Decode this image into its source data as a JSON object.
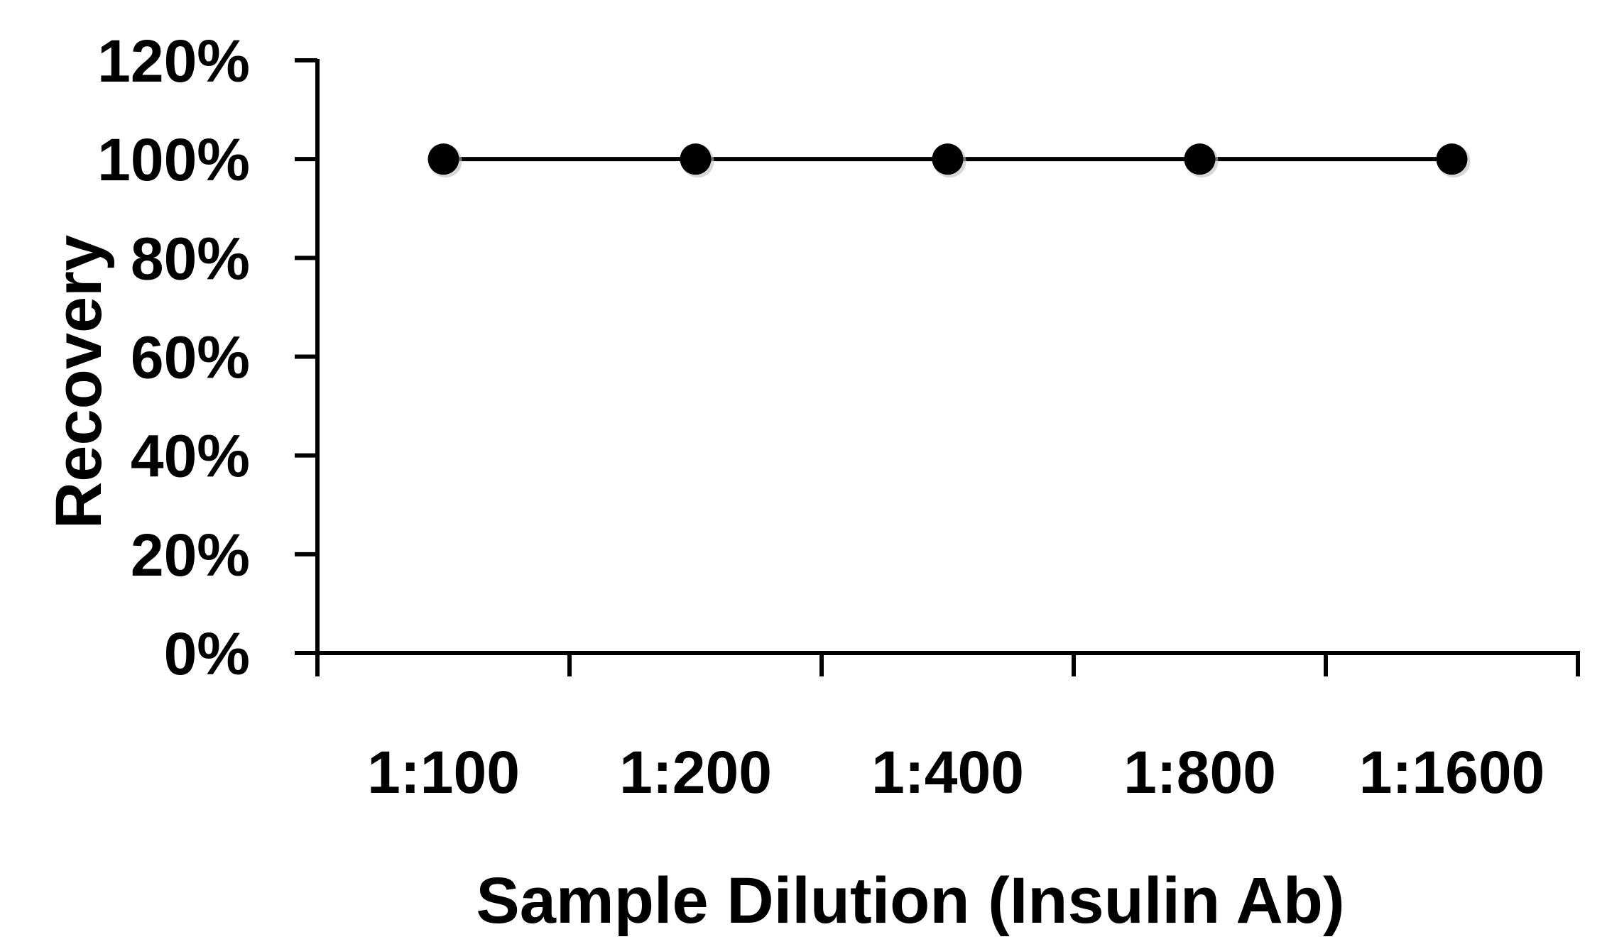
{
  "chart_data": {
    "type": "line",
    "categories": [
      "1:100",
      "1:200",
      "1:400",
      "1:800",
      "1:1600"
    ],
    "series": [
      {
        "values": [
          1.0,
          1.0,
          1.0,
          1.0,
          1.0
        ]
      }
    ],
    "xlabel": "Sample Dilution (Insulin Ab)",
    "ylabel": "Recovery",
    "ylim": [
      0,
      1.2
    ],
    "y_ticks": [
      0,
      0.2,
      0.4,
      0.6,
      0.8,
      1.0,
      1.2
    ],
    "y_tick_labels": [
      "0%",
      "20%",
      "40%",
      "60%",
      "80%",
      "100%",
      "120%"
    ],
    "grid": false,
    "legend": "none",
    "colors": {
      "line": "#000000",
      "marker": "#000000",
      "axis": "#000000"
    }
  }
}
